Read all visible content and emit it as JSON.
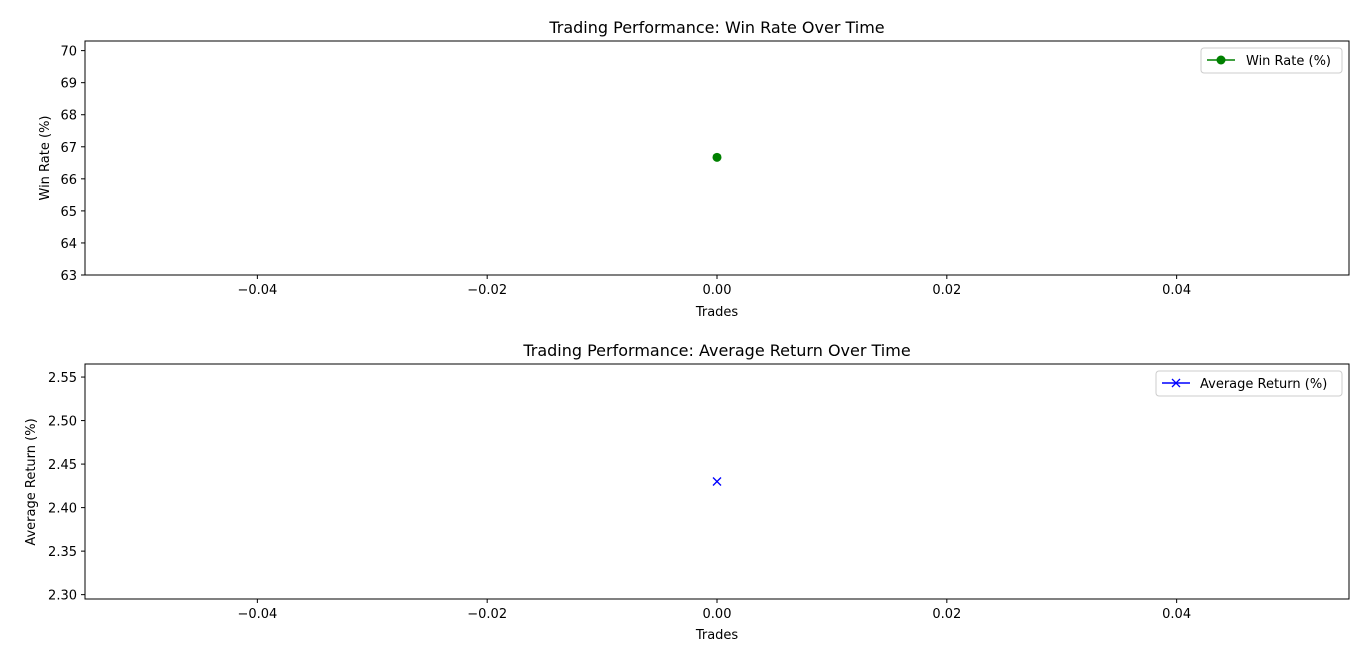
{
  "chart_data": [
    {
      "type": "line",
      "title": "Trading Performance: Win Rate Over Time",
      "xlabel": "Trades",
      "ylabel": "Win Rate (%)",
      "xlim": [
        -0.055,
        0.055
      ],
      "ylim": [
        63,
        70.3
      ],
      "x_ticks": [
        -0.04,
        -0.02,
        0.0,
        0.02,
        0.04
      ],
      "x_tick_labels": [
        "−0.04",
        "−0.02",
        "0.00",
        "0.02",
        "0.04"
      ],
      "y_ticks": [
        63,
        64,
        65,
        66,
        67,
        68,
        69,
        70
      ],
      "y_tick_labels": [
        "63",
        "64",
        "65",
        "66",
        "67",
        "68",
        "69",
        "70"
      ],
      "legend_position": "top-right",
      "series": [
        {
          "name": "Win Rate (%)",
          "x": [
            0
          ],
          "values": [
            66.67
          ],
          "color": "#008000",
          "marker": "circle"
        }
      ]
    },
    {
      "type": "line",
      "title": "Trading Performance: Average Return Over Time",
      "xlabel": "Trades",
      "ylabel": "Average Return (%)",
      "xlim": [
        -0.055,
        0.055
      ],
      "ylim": [
        2.295,
        2.565
      ],
      "x_ticks": [
        -0.04,
        -0.02,
        0.0,
        0.02,
        0.04
      ],
      "x_tick_labels": [
        "−0.04",
        "−0.02",
        "0.00",
        "0.02",
        "0.04"
      ],
      "y_ticks": [
        2.3,
        2.35,
        2.4,
        2.45,
        2.5,
        2.55
      ],
      "y_tick_labels": [
        "2.30",
        "2.35",
        "2.40",
        "2.45",
        "2.50",
        "2.55"
      ],
      "legend_position": "top-right",
      "series": [
        {
          "name": "Average Return (%)",
          "x": [
            0
          ],
          "values": [
            2.43
          ],
          "color": "#0000ff",
          "marker": "x"
        }
      ]
    }
  ]
}
